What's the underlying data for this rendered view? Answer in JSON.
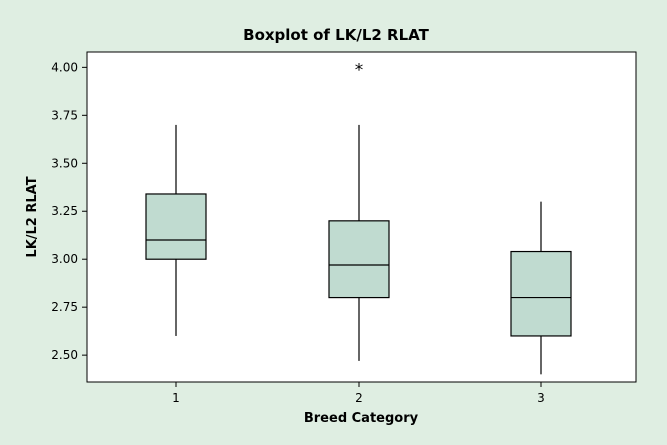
{
  "chart_data": {
    "type": "box",
    "title": "Boxplot of LK/L2 RLAT",
    "xlabel": "Breed Category",
    "ylabel": "LK/L2 RLAT",
    "ylim": [
      2.36,
      4.08
    ],
    "yticks": [
      "2.50",
      "2.75",
      "3.00",
      "3.25",
      "3.50",
      "3.75",
      "4.00"
    ],
    "categories": [
      "1",
      "2",
      "3"
    ],
    "boxes": [
      {
        "category": "1",
        "whisker_low": 2.6,
        "q1": 3.0,
        "median": 3.1,
        "q3": 3.34,
        "whisker_high": 3.7,
        "outliers": []
      },
      {
        "category": "2",
        "whisker_low": 2.47,
        "q1": 2.8,
        "median": 2.97,
        "q3": 3.2,
        "whisker_high": 3.7,
        "outliers": [
          4.0
        ]
      },
      {
        "category": "3",
        "whisker_low": 2.4,
        "q1": 2.6,
        "median": 2.8,
        "q3": 3.04,
        "whisker_high": 3.3,
        "outliers": []
      }
    ],
    "grid": false,
    "legend": "none",
    "colors": {
      "box_fill": "#c0dbd0",
      "plot_bg": "#ffffff",
      "page_bg": "#dfeee2",
      "stroke": "#000000"
    },
    "outlier_marker": "*"
  }
}
